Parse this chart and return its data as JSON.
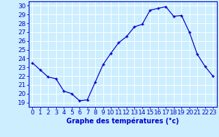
{
  "hours": [
    0,
    1,
    2,
    3,
    4,
    5,
    6,
    7,
    8,
    9,
    10,
    11,
    12,
    13,
    14,
    15,
    16,
    17,
    18,
    19,
    20,
    21,
    22,
    23
  ],
  "temps": [
    23.5,
    22.7,
    21.9,
    21.7,
    20.3,
    20.0,
    19.2,
    19.3,
    21.3,
    23.3,
    24.6,
    25.8,
    26.5,
    27.6,
    27.9,
    29.5,
    29.7,
    29.9,
    28.8,
    28.9,
    27.0,
    24.5,
    23.1,
    22.0
  ],
  "line_color": "#0000cc",
  "marker": "+",
  "bg_color": "#cceeff",
  "grid_color": "#ffffff",
  "xlabel": "Graphe des températures (°c)",
  "ylabel_ticks": [
    19,
    20,
    21,
    22,
    23,
    24,
    25,
    26,
    27,
    28,
    29,
    30
  ],
  "ylim": [
    18.5,
    30.5
  ],
  "xlim": [
    -0.5,
    23.5
  ],
  "axis_color": "#0000cc",
  "label_fontsize": 7,
  "tick_fontsize": 6.5
}
